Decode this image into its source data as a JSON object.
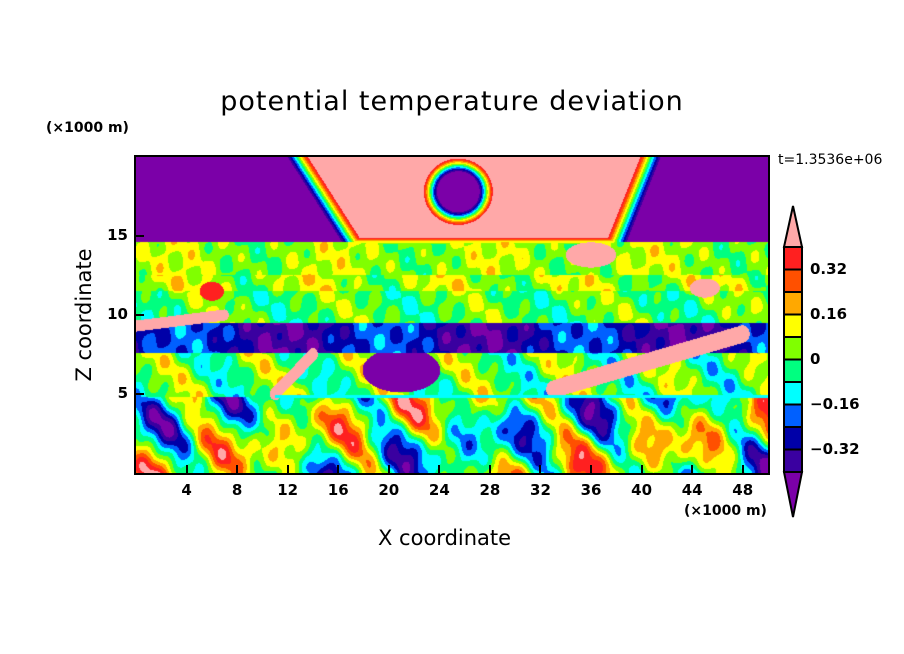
{
  "chart_data": {
    "type": "heatmap",
    "subtype": "filled-contour",
    "title": "potential temperature deviation",
    "xlabel": "X coordinate",
    "ylabel": "Z coordinate",
    "x_unit": "(×1000 m)",
    "y_unit": "(×1000 m)",
    "xlim": [
      0,
      50
    ],
    "ylim": [
      0,
      20
    ],
    "x_ticks": [
      "4",
      "8",
      "12",
      "16",
      "20",
      "24",
      "28",
      "32",
      "36",
      "40",
      "44",
      "48"
    ],
    "x_tick_values": [
      4,
      8,
      12,
      16,
      20,
      24,
      28,
      32,
      36,
      40,
      44,
      48
    ],
    "y_ticks": [
      "5",
      "10",
      "15"
    ],
    "y_tick_values": [
      5,
      10,
      15
    ],
    "time_label": "t=1.3536e+06",
    "colorbar": {
      "levels": [
        -0.4,
        -0.32,
        -0.24,
        -0.16,
        -0.08,
        0,
        0.08,
        0.16,
        0.24,
        0.32,
        0.4
      ],
      "colors": [
        "#7b00a8",
        "#3a00a0",
        "#0000a8",
        "#0060ff",
        "#00ffff",
        "#00ff80",
        "#80ff00",
        "#ffff00",
        "#ffa800",
        "#ff5000",
        "#ff2020",
        "#ffa8a8"
      ],
      "labels": [
        "0.32",
        "0.16",
        "0",
        "−0.16",
        "−0.32"
      ],
      "label_values": [
        0.32,
        0.16,
        0,
        -0.16,
        -0.32
      ]
    }
  }
}
